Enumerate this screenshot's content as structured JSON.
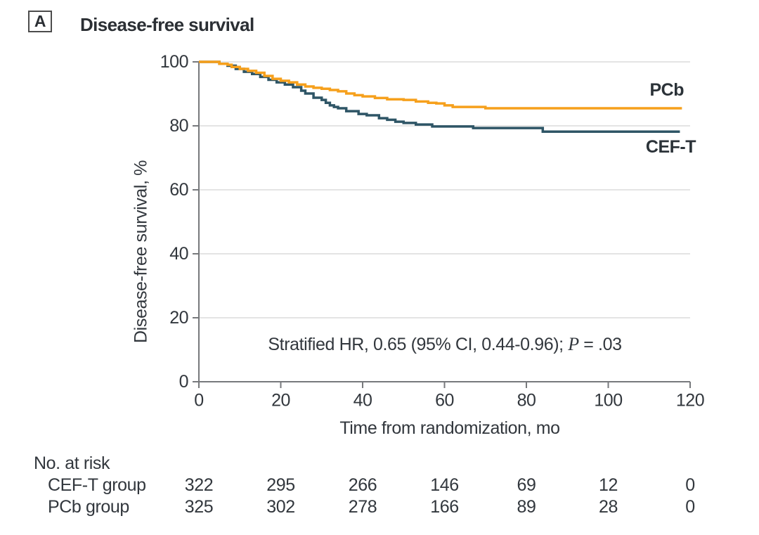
{
  "panel": {
    "label": "A",
    "title": "Disease-free survival"
  },
  "colors": {
    "axis": "#77797c",
    "grid": "#e1e1e1",
    "text": "#32373d",
    "pcb_orange": "#F6A01C",
    "ceft_teal": "#2E5566"
  },
  "chart_data": {
    "type": "line",
    "subtype": "kaplan-meier-step",
    "title": "Disease-free survival",
    "xlabel": "Time from randomization, mo",
    "ylabel": "Disease-free survival, %",
    "xlim": [
      0,
      120
    ],
    "ylim": [
      0,
      100
    ],
    "xticks": [
      0,
      20,
      40,
      60,
      80,
      100,
      120
    ],
    "yticks": [
      0,
      20,
      40,
      60,
      80,
      100
    ],
    "grid": "horizontal",
    "legend_position": "end-of-curve-labels",
    "annotation": {
      "prefix": "Stratified HR, 0.65 (95% CI, 0.44-0.96); ",
      "p_label": "P",
      "suffix": " = .03"
    },
    "series": [
      {
        "name": "PCb",
        "color": "#F6A01C",
        "points": [
          [
            0,
            100
          ],
          [
            4.5,
            100
          ],
          [
            5,
            99.4
          ],
          [
            7,
            99.1
          ],
          [
            8,
            98.4
          ],
          [
            10,
            97.8
          ],
          [
            12,
            97.2
          ],
          [
            14,
            96.6
          ],
          [
            16,
            95.6
          ],
          [
            18,
            94.7
          ],
          [
            20,
            94.1
          ],
          [
            22,
            93.6
          ],
          [
            24,
            92.9
          ],
          [
            26,
            92.3
          ],
          [
            28,
            91.9
          ],
          [
            30,
            91.6
          ],
          [
            32,
            91.2
          ],
          [
            34,
            90.8
          ],
          [
            36,
            90.1
          ],
          [
            38,
            89.6
          ],
          [
            40,
            89.2
          ],
          [
            43,
            88.7
          ],
          [
            46,
            88.3
          ],
          [
            50,
            88.1
          ],
          [
            53,
            87.6
          ],
          [
            56,
            87.2
          ],
          [
            58,
            87.0
          ],
          [
            60,
            86.4
          ],
          [
            62,
            85.9
          ],
          [
            70,
            85.5
          ],
          [
            118,
            85.5
          ]
        ]
      },
      {
        "name": "CEF-T",
        "color": "#2E5566",
        "points": [
          [
            0,
            100
          ],
          [
            4,
            100
          ],
          [
            5,
            99.4
          ],
          [
            7,
            98.8
          ],
          [
            9,
            97.8
          ],
          [
            11,
            96.9
          ],
          [
            13,
            96.2
          ],
          [
            15,
            95.3
          ],
          [
            17,
            94.4
          ],
          [
            19,
            93.6
          ],
          [
            21,
            92.9
          ],
          [
            23,
            92.1
          ],
          [
            25,
            91.0
          ],
          [
            26,
            90.1
          ],
          [
            28,
            88.8
          ],
          [
            30,
            88.1
          ],
          [
            31,
            87.2
          ],
          [
            32,
            86.4
          ],
          [
            33,
            85.9
          ],
          [
            34,
            85.5
          ],
          [
            36,
            84.6
          ],
          [
            39,
            83.7
          ],
          [
            41,
            83.3
          ],
          [
            44,
            82.4
          ],
          [
            46,
            81.9
          ],
          [
            48,
            81.3
          ],
          [
            50,
            80.9
          ],
          [
            53,
            80.4
          ],
          [
            57,
            79.8
          ],
          [
            67,
            79.3
          ],
          [
            84,
            78.2
          ],
          [
            117.5,
            78.2
          ]
        ]
      }
    ],
    "risk_table": {
      "title": "No. at risk",
      "times": [
        0,
        20,
        40,
        60,
        80,
        100,
        120
      ],
      "rows": [
        {
          "label": "CEF-T group",
          "values": [
            "322",
            "295",
            "266",
            "146",
            "69",
            "12",
            "0"
          ]
        },
        {
          "label": "PCb group",
          "values": [
            "325",
            "302",
            "278",
            "166",
            "89",
            "28",
            "0"
          ]
        }
      ]
    }
  }
}
